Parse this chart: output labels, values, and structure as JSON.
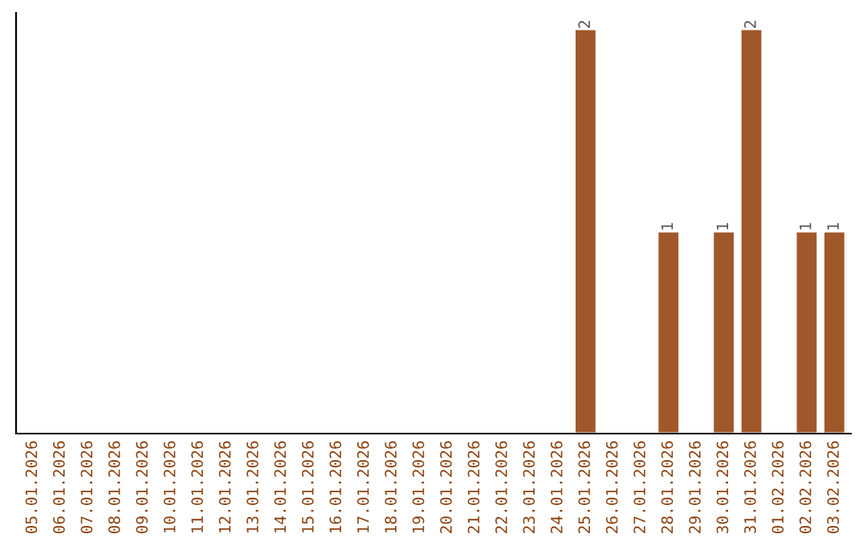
{
  "chart_data": {
    "type": "bar",
    "categories": [
      "05.01.2026",
      "06.01.2026",
      "07.01.2026",
      "08.01.2026",
      "09.01.2026",
      "10.01.2026",
      "11.01.2026",
      "12.01.2026",
      "13.01.2026",
      "14.01.2026",
      "15.01.2026",
      "16.01.2026",
      "17.01.2026",
      "18.01.2026",
      "19.01.2026",
      "20.01.2026",
      "21.01.2026",
      "22.01.2026",
      "23.01.2026",
      "24.01.2026",
      "25.01.2026",
      "26.01.2026",
      "27.01.2026",
      "28.01.2026",
      "29.01.2026",
      "30.01.2026",
      "31.01.2026",
      "01.02.2026",
      "02.02.2026",
      "03.02.2026"
    ],
    "values": [
      null,
      null,
      null,
      null,
      null,
      null,
      null,
      null,
      null,
      null,
      null,
      null,
      null,
      null,
      null,
      null,
      null,
      null,
      null,
      null,
      2,
      null,
      null,
      1,
      null,
      1,
      2,
      null,
      1,
      1
    ],
    "data_labels": true,
    "color": "#a0582a",
    "ylim": [
      0,
      2.08
    ],
    "grid": false,
    "legend": false
  }
}
